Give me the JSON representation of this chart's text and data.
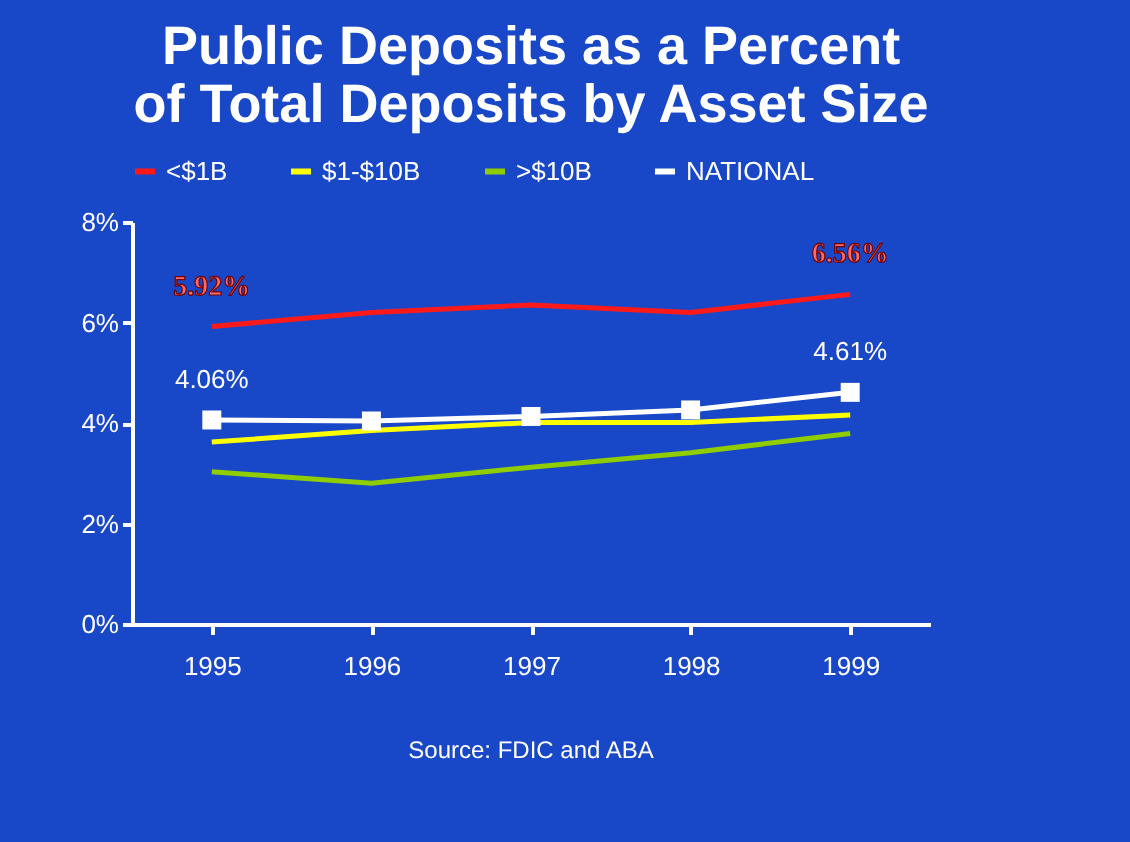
{
  "chart_data": {
    "type": "line",
    "title": [
      "Public Deposits as a Percent",
      "of Total Deposits by Asset Size"
    ],
    "categories": [
      "1995",
      "1996",
      "1997",
      "1998",
      "1999"
    ],
    "series": [
      {
        "name": "<$1B",
        "color": "#ff1a1a",
        "values": [
          5.92,
          6.2,
          6.35,
          6.2,
          6.56
        ],
        "marker": "none",
        "value_labels": [
          "5.92%",
          null,
          null,
          null,
          "6.56%"
        ]
      },
      {
        "name": "$1-$10B",
        "color": "#ffff00",
        "values": [
          3.62,
          3.85,
          4.01,
          4.01,
          4.16
        ],
        "marker": "none"
      },
      {
        "name": ">$10B",
        "color": "#8fcc00",
        "values": [
          3.03,
          2.8,
          3.12,
          3.41,
          3.79
        ],
        "marker": "none"
      },
      {
        "name": "NATIONAL",
        "color": "#ffffff",
        "values": [
          4.06,
          4.04,
          4.13,
          4.26,
          4.61
        ],
        "marker": "square",
        "value_labels": [
          "4.06%",
          null,
          null,
          null,
          "4.61%"
        ]
      }
    ],
    "ylim": [
      0,
      8
    ],
    "yticks": [
      {
        "value": 0,
        "label": "0%"
      },
      {
        "value": 2,
        "label": "2%"
      },
      {
        "value": 4,
        "label": "4%"
      },
      {
        "value": 6,
        "label": "6%"
      },
      {
        "value": 8,
        "label": "8%"
      }
    ],
    "grid": false,
    "legend": "top",
    "line_style": "solid",
    "annotations": [
      "Source: FDIC and ABA"
    ]
  }
}
